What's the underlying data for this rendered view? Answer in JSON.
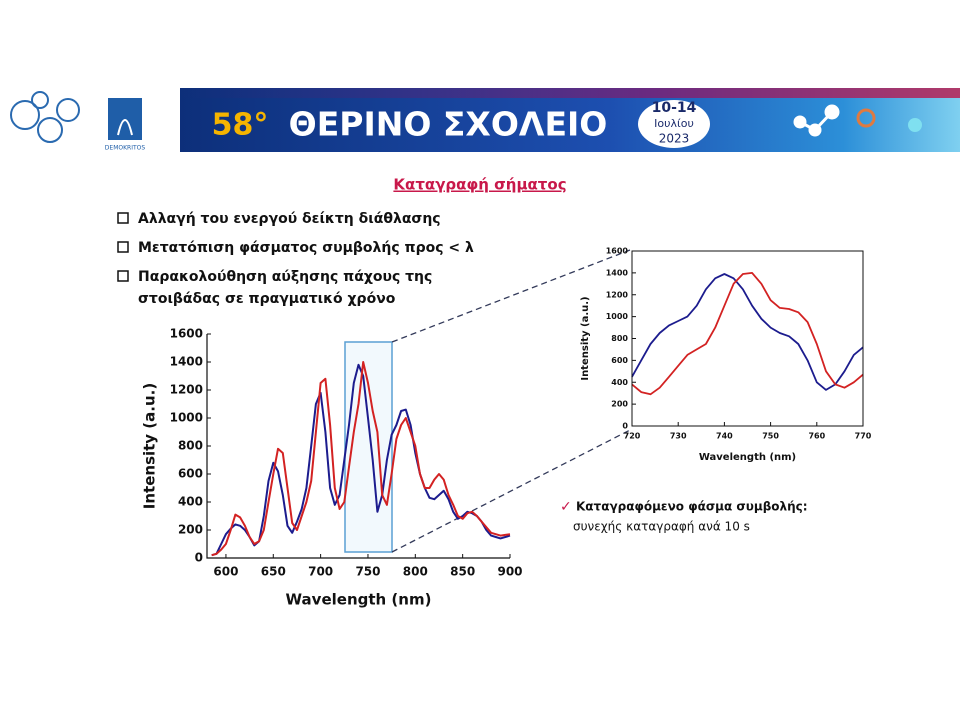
{
  "header": {
    "edition": "58°",
    "title": "ΘΕΡΙΝΟ ΣΧΟΛΕΙΟ",
    "dates": "10-14",
    "month": "Ιουλίου",
    "year": "2023",
    "logo_text": "DEMOKRITOS"
  },
  "slide_title": "Καταγραφή σήματος",
  "bullets": [
    [
      "Αλλαγή του ενεργού δείκτη διάθλασης"
    ],
    [
      "Μετατόπιση φάσματος συμβολής προς < λ"
    ],
    [
      "Παρακολούθηση αύξησης πάχους της",
      "στοιβάδας σε πραγματικό χρόνο"
    ]
  ],
  "note": {
    "heading": "Καταγραφόμενο φάσμα συμβολής:",
    "text": "συνεχής καταγραφή ανά 10 s"
  },
  "chart_data": [
    {
      "type": "line",
      "x_label": "Wavelength (nm)",
      "y_label": "Intensity (a.u.)",
      "x": [
        585,
        590,
        595,
        600,
        605,
        610,
        615,
        620,
        625,
        630,
        635,
        640,
        645,
        650,
        655,
        660,
        665,
        670,
        675,
        680,
        685,
        690,
        695,
        700,
        705,
        710,
        715,
        720,
        725,
        730,
        735,
        740,
        745,
        750,
        755,
        760,
        765,
        770,
        775,
        780,
        785,
        790,
        795,
        800,
        805,
        810,
        815,
        820,
        825,
        830,
        835,
        840,
        845,
        850,
        855,
        860,
        865,
        870,
        875,
        880,
        885,
        890,
        895,
        900
      ],
      "series": [
        {
          "color": "#1c1c8e",
          "values": [
            20,
            30,
            100,
            170,
            210,
            240,
            230,
            200,
            150,
            90,
            120,
            300,
            550,
            680,
            620,
            450,
            230,
            180,
            260,
            350,
            500,
            800,
            1100,
            1180,
            900,
            500,
            380,
            450,
            700,
            950,
            1250,
            1380,
            1300,
            1000,
            700,
            330,
            450,
            700,
            880,
            950,
            1050,
            1060,
            950,
            750,
            600,
            500,
            430,
            420,
            450,
            480,
            420,
            330,
            280,
            300,
            330,
            320,
            300,
            260,
            200,
            160,
            150,
            140,
            150,
            160
          ]
        },
        {
          "color": "#d32222",
          "values": [
            20,
            30,
            60,
            100,
            200,
            310,
            290,
            230,
            150,
            100,
            120,
            200,
            400,
            600,
            780,
            750,
            500,
            250,
            200,
            300,
            400,
            550,
            900,
            1250,
            1280,
            950,
            500,
            350,
            400,
            650,
            900,
            1100,
            1400,
            1250,
            1050,
            900,
            450,
            380,
            600,
            850,
            950,
            1000,
            900,
            800,
            600,
            500,
            500,
            560,
            600,
            560,
            450,
            380,
            300,
            280,
            320,
            330,
            300,
            260,
            220,
            180,
            170,
            160,
            165,
            170
          ]
        }
      ],
      "xlim": [
        580,
        900
      ],
      "xticks": [
        600,
        650,
        700,
        750,
        800,
        850,
        900
      ],
      "ylim": [
        0,
        1600
      ],
      "yticks": [
        0,
        200,
        400,
        600,
        800,
        1000,
        1200,
        1400,
        1600
      ]
    },
    {
      "type": "line",
      "x_label": "Wavelength (nm)",
      "y_label": "Intensity (a.u.)",
      "x": [
        720,
        722,
        724,
        726,
        728,
        730,
        732,
        734,
        736,
        738,
        740,
        742,
        744,
        746,
        748,
        750,
        752,
        754,
        756,
        758,
        760,
        762,
        764,
        766,
        768,
        770
      ],
      "series": [
        {
          "color": "#1c1c8e",
          "values": [
            450,
            600,
            750,
            850,
            920,
            960,
            1000,
            1100,
            1250,
            1350,
            1390,
            1350,
            1250,
            1100,
            980,
            900,
            850,
            820,
            750,
            600,
            400,
            330,
            380,
            500,
            650,
            720
          ]
        },
        {
          "color": "#d32222",
          "values": [
            380,
            310,
            290,
            350,
            450,
            550,
            650,
            700,
            750,
            900,
            1100,
            1300,
            1390,
            1400,
            1300,
            1150,
            1080,
            1070,
            1040,
            950,
            750,
            500,
            380,
            350,
            400,
            470
          ]
        }
      ],
      "xlim": [
        720,
        770
      ],
      "xticks": [
        720,
        730,
        740,
        750,
        760,
        770
      ],
      "ylim": [
        0,
        1600
      ],
      "yticks": [
        0,
        200,
        400,
        600,
        800,
        1000,
        1200,
        1400,
        1600
      ]
    }
  ]
}
